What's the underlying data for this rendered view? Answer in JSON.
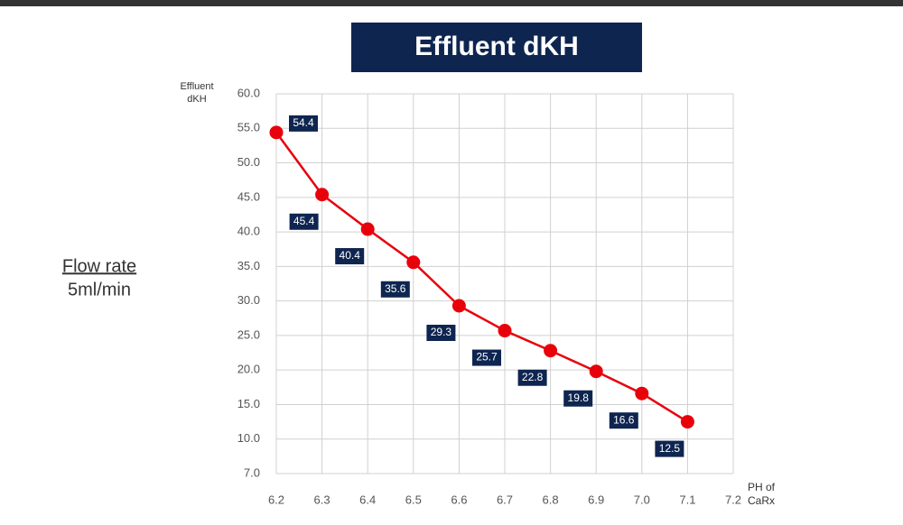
{
  "chart_data": {
    "type": "line",
    "title": "Effluent dKH",
    "ylabel": [
      "Effluent",
      "dKH"
    ],
    "xlabel": [
      "PH of",
      "CaRx"
    ],
    "annotations": [
      "Flow rate",
      "5ml/min"
    ],
    "x": [
      6.2,
      6.3,
      6.4,
      6.5,
      6.6,
      6.7,
      6.8,
      6.9,
      7.0,
      7.1
    ],
    "series": [
      {
        "name": "Effluent dKH",
        "color": "#e8000b",
        "values": [
          54.4,
          45.4,
          40.4,
          35.6,
          29.3,
          25.7,
          22.8,
          19.8,
          16.6,
          12.5
        ]
      }
    ],
    "xlim": [
      6.2,
      7.2
    ],
    "xticks": [
      6.2,
      6.3,
      6.4,
      6.5,
      6.6,
      6.7,
      6.8,
      6.9,
      {
        "value": 7,
        "label": "7.0"
      },
      7.1,
      7.2
    ],
    "ylim": [
      7,
      60
    ],
    "yticks": [
      {
        "value": 7,
        "label": "7.0"
      },
      {
        "value": 10,
        "label": "10.0"
      },
      {
        "value": 15,
        "label": "15.0"
      },
      {
        "value": 20,
        "label": "20.0"
      },
      {
        "value": 25,
        "label": "25.0"
      },
      {
        "value": 30,
        "label": "30.0"
      },
      {
        "value": 35,
        "label": "35.0"
      },
      {
        "value": 40,
        "label": "40.0"
      },
      {
        "value": 45,
        "label": "45.0"
      },
      {
        "value": 50,
        "label": "50.0"
      },
      {
        "value": 55,
        "label": "55.0"
      },
      {
        "value": 60,
        "label": "60.0"
      }
    ],
    "grid": true,
    "label_box_color": "#0e2550"
  }
}
